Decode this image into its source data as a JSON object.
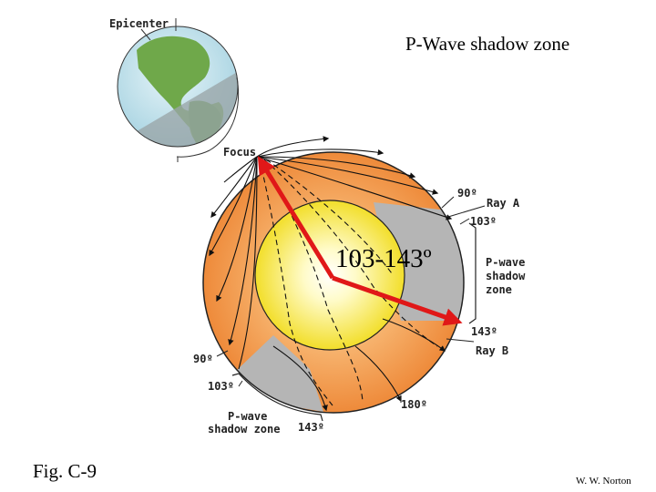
{
  "title": "P-Wave shadow zone",
  "figure_label": "Fig. C-9",
  "author": "W. W. Norton",
  "angle_range": "103-143º",
  "labels": {
    "epicenter": "Epicenter",
    "focus": "Focus",
    "ray_a": "Ray A",
    "ray_b": "Ray B",
    "deg_90_right": "90º",
    "deg_103_right": "103º",
    "deg_143_right": "143º",
    "shadow_right_1": "P-wave",
    "shadow_right_2": "shadow",
    "shadow_right_3": "zone",
    "deg_90_left": "90º",
    "deg_103_left": "103º",
    "deg_143_bottom": "143º",
    "deg_180": "180º",
    "shadow_left_1": "P-wave",
    "shadow_left_2": "shadow zone"
  },
  "colors": {
    "mantle": "#f0913f",
    "core": "#f5e93a",
    "shadow": "#b5b5b5",
    "arrow": "#e01818"
  }
}
